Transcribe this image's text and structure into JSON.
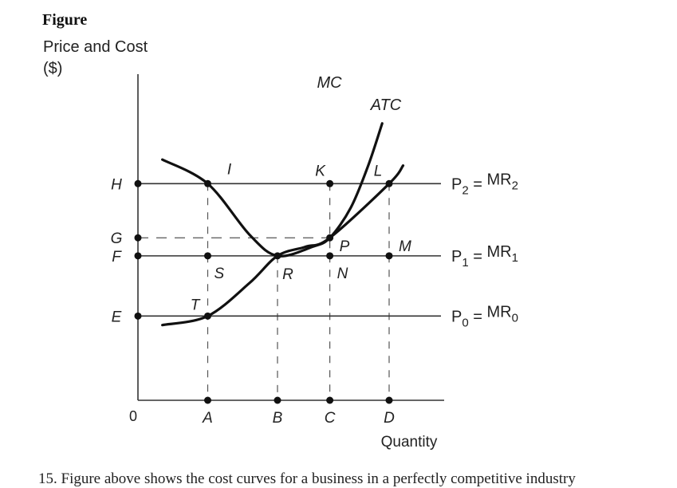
{
  "figure_label": "Figure",
  "footer_text": "15. Figure above shows the cost curves for a business in a perfectly competitive industry",
  "chart_data": {
    "type": "line",
    "ylabel": "Price and Cost ($)",
    "xlabel": "Quantity",
    "origin_label": "0",
    "x_levels": [
      {
        "name": "A",
        "value": 1
      },
      {
        "name": "B",
        "value": 2
      },
      {
        "name": "C",
        "value": 2.75
      },
      {
        "name": "D",
        "value": 3.6
      }
    ],
    "y_levels": [
      {
        "name": "E",
        "value": 1.4
      },
      {
        "name": "F",
        "value": 2.4
      },
      {
        "name": "G",
        "value": 2.7
      },
      {
        "name": "H",
        "value": 3.6
      }
    ],
    "xlim": [
      0,
      4.4
    ],
    "ylim": [
      0,
      5.3
    ],
    "price_lines": [
      {
        "label": "P",
        "sub": "2",
        "mr": "MR",
        "mrsub": "2",
        "y": 3.6
      },
      {
        "label": "P",
        "sub": "1",
        "mr": "MR",
        "mrsub": "1",
        "y": 2.4
      },
      {
        "label": "P",
        "sub": "0",
        "mr": "MR",
        "mrsub": "0",
        "y": 1.4
      }
    ],
    "curves": [
      {
        "name": "MC",
        "points": [
          [
            0.35,
            4.0
          ],
          [
            1.0,
            3.6
          ],
          [
            1.6,
            2.75
          ],
          [
            2.0,
            2.4
          ],
          [
            2.5,
            2.55
          ],
          [
            2.75,
            2.7
          ],
          [
            3.05,
            3.2
          ],
          [
            3.3,
            3.9
          ],
          [
            3.5,
            4.6
          ]
        ]
      },
      {
        "name": "ATC",
        "points": [
          [
            0.35,
            1.25
          ],
          [
            1.0,
            1.4
          ],
          [
            1.6,
            1.95
          ],
          [
            2.0,
            2.4
          ],
          [
            2.4,
            2.55
          ],
          [
            2.75,
            2.7
          ],
          [
            3.6,
            3.6
          ],
          [
            3.8,
            3.9
          ]
        ]
      }
    ],
    "points": [
      {
        "label": "I",
        "x": 1,
        "y": 3.6
      },
      {
        "label": "K",
        "x": 2.75,
        "y": 3.6
      },
      {
        "label": "L",
        "x": 3.6,
        "y": 3.6
      },
      {
        "label": "P",
        "x": 2.75,
        "y": 2.7
      },
      {
        "label": "M",
        "x": 3.6,
        "y": 2.4
      },
      {
        "label": "S",
        "x": 1,
        "y": 2.4
      },
      {
        "label": "R",
        "x": 2,
        "y": 2.4
      },
      {
        "label": "N",
        "x": 2.75,
        "y": 2.4
      },
      {
        "label": "T",
        "x": 1,
        "y": 1.4
      }
    ]
  }
}
